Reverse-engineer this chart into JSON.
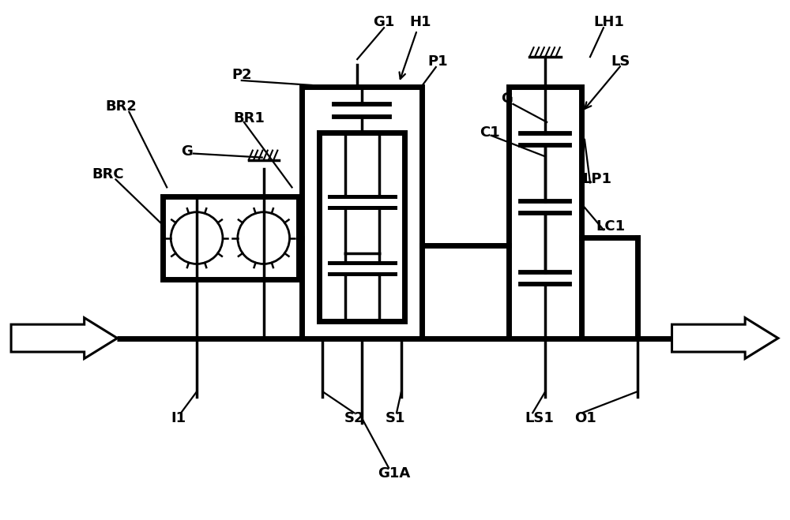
{
  "bg_color": "#ffffff",
  "lc": "#000000",
  "lw": 2.5,
  "tlw": 5.0,
  "figw": 10.0,
  "figh": 6.59,
  "dpi": 100,
  "label_items": [
    [
      "BR2",
      1.32,
      5.25
    ],
    [
      "G",
      2.28,
      4.68
    ],
    [
      "BR1",
      2.95,
      5.1
    ],
    [
      "P2",
      2.92,
      5.65
    ],
    [
      "BRC",
      1.15,
      4.38
    ],
    [
      "I1",
      2.15,
      1.28
    ],
    [
      "S2",
      4.35,
      1.28
    ],
    [
      "S1",
      4.88,
      1.28
    ],
    [
      "G1A",
      4.78,
      0.58
    ],
    [
      "G1",
      4.72,
      6.32
    ],
    [
      "H1",
      5.18,
      6.32
    ],
    [
      "P1",
      5.42,
      5.82
    ],
    [
      "C1",
      6.08,
      4.92
    ],
    [
      "G",
      6.35,
      5.35
    ],
    [
      "LH1",
      7.52,
      6.32
    ],
    [
      "LS",
      7.75,
      5.82
    ],
    [
      "LP1",
      7.38,
      4.32
    ],
    [
      "LC1",
      7.55,
      3.72
    ],
    [
      "LS1",
      6.65,
      1.28
    ],
    [
      "O1",
      7.28,
      1.28
    ]
  ]
}
